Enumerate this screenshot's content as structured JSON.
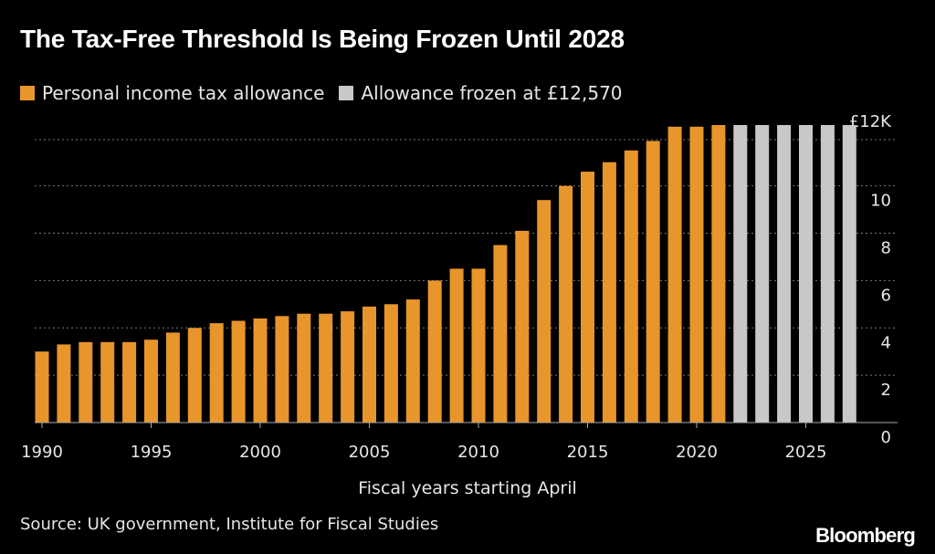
{
  "header": {
    "title": "The Tax-Free Threshold Is Being Frozen Until 2028"
  },
  "legend": {
    "items": [
      {
        "label": "Personal income tax allowance",
        "color": "#E8952B"
      },
      {
        "label": "Allowance frozen at £12,570",
        "color": "#C8C8C8"
      }
    ]
  },
  "footer": {
    "source": "Source: UK government, Institute for Fiscal Studies",
    "brand": "Bloomberg"
  },
  "chart_data": {
    "type": "bar",
    "xlabel": "Fiscal years starting April",
    "ylabel": "",
    "ylim": [
      0,
      12.57
    ],
    "grid": true,
    "legend_position": "top-left",
    "y_ticks": [
      {
        "value": 0,
        "label": "0"
      },
      {
        "value": 2,
        "label": "2"
      },
      {
        "value": 4,
        "label": "4"
      },
      {
        "value": 6,
        "label": "6"
      },
      {
        "value": 8,
        "label": "8"
      },
      {
        "value": 10,
        "label": "10"
      },
      {
        "value": 12,
        "label": "£12K"
      }
    ],
    "x_ticks": [
      1990,
      1995,
      2000,
      2005,
      2010,
      2015,
      2020,
      2025
    ],
    "categories": [
      1990,
      1991,
      1992,
      1993,
      1994,
      1995,
      1996,
      1997,
      1998,
      1999,
      2000,
      2001,
      2002,
      2003,
      2004,
      2005,
      2006,
      2007,
      2008,
      2009,
      2010,
      2011,
      2012,
      2013,
      2014,
      2015,
      2016,
      2017,
      2018,
      2019,
      2020,
      2021,
      2022,
      2023,
      2024,
      2025,
      2026,
      2027
    ],
    "series": [
      {
        "name": "Personal income tax allowance",
        "color": "#E8952B",
        "values": [
          3.0,
          3.3,
          3.4,
          3.4,
          3.4,
          3.5,
          3.8,
          4.0,
          4.2,
          4.3,
          4.4,
          4.5,
          4.6,
          4.6,
          4.7,
          4.9,
          5.0,
          5.2,
          6.0,
          6.5,
          6.5,
          7.5,
          8.1,
          9.4,
          10.0,
          10.6,
          11.0,
          11.5,
          11.9,
          12.5,
          12.5,
          12.57,
          null,
          null,
          null,
          null,
          null,
          null
        ]
      },
      {
        "name": "Allowance frozen at £12,570",
        "color": "#C8C8C8",
        "values": [
          null,
          null,
          null,
          null,
          null,
          null,
          null,
          null,
          null,
          null,
          null,
          null,
          null,
          null,
          null,
          null,
          null,
          null,
          null,
          null,
          null,
          null,
          null,
          null,
          null,
          null,
          null,
          null,
          null,
          null,
          null,
          null,
          12.57,
          12.57,
          12.57,
          12.57,
          12.57,
          12.57
        ]
      }
    ]
  }
}
